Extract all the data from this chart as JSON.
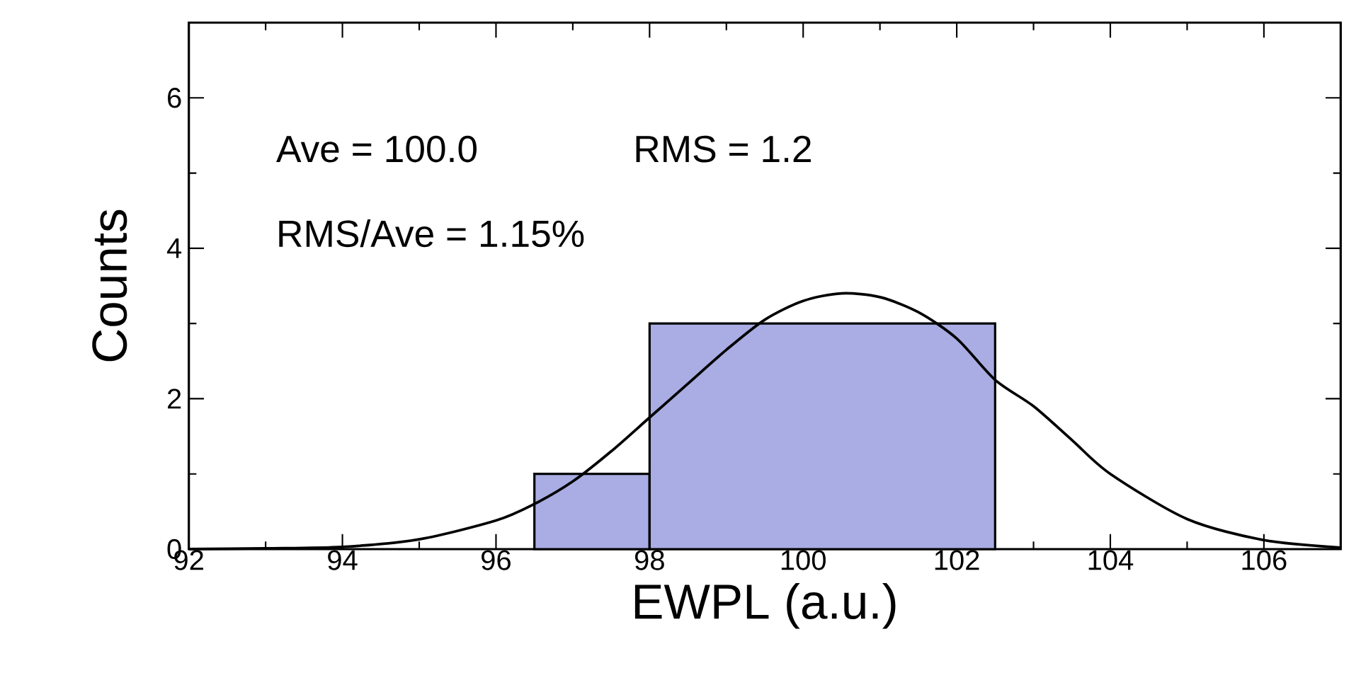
{
  "chart_data": {
    "type": "histogram",
    "xlabel": "EWPL (a.u.)",
    "ylabel": "Counts",
    "bins": [
      96.5,
      98,
      102.5
    ],
    "values": [
      1,
      3
    ],
    "color": "#a9ade3",
    "series": [
      {
        "type": "line",
        "color": "#000000",
        "x": [
          92,
          93,
          94,
          95,
          96,
          96.5,
          97,
          97.5,
          98,
          98.5,
          99,
          99.5,
          100,
          100.5,
          101,
          101.5,
          102,
          102.5,
          103,
          103.5,
          104,
          105,
          106,
          107
        ],
        "values": [
          0,
          0.01,
          0.03,
          0.13,
          0.38,
          0.6,
          0.9,
          1.3,
          1.75,
          2.2,
          2.65,
          3.05,
          3.3,
          3.4,
          3.35,
          3.15,
          2.8,
          2.25,
          1.9,
          1.45,
          1.0,
          0.4,
          0.12,
          0.02
        ]
      }
    ],
    "xlim": [
      92,
      107
    ],
    "xticks": [
      92,
      94,
      96,
      98,
      100,
      102,
      104,
      106
    ],
    "ylim": [
      0,
      7
    ],
    "yticks": [
      0,
      2,
      4,
      6
    ],
    "annotations": [
      "Ave = 100.0",
      "RMS = 1.2",
      "RMS/Ave = 1.15%"
    ]
  }
}
